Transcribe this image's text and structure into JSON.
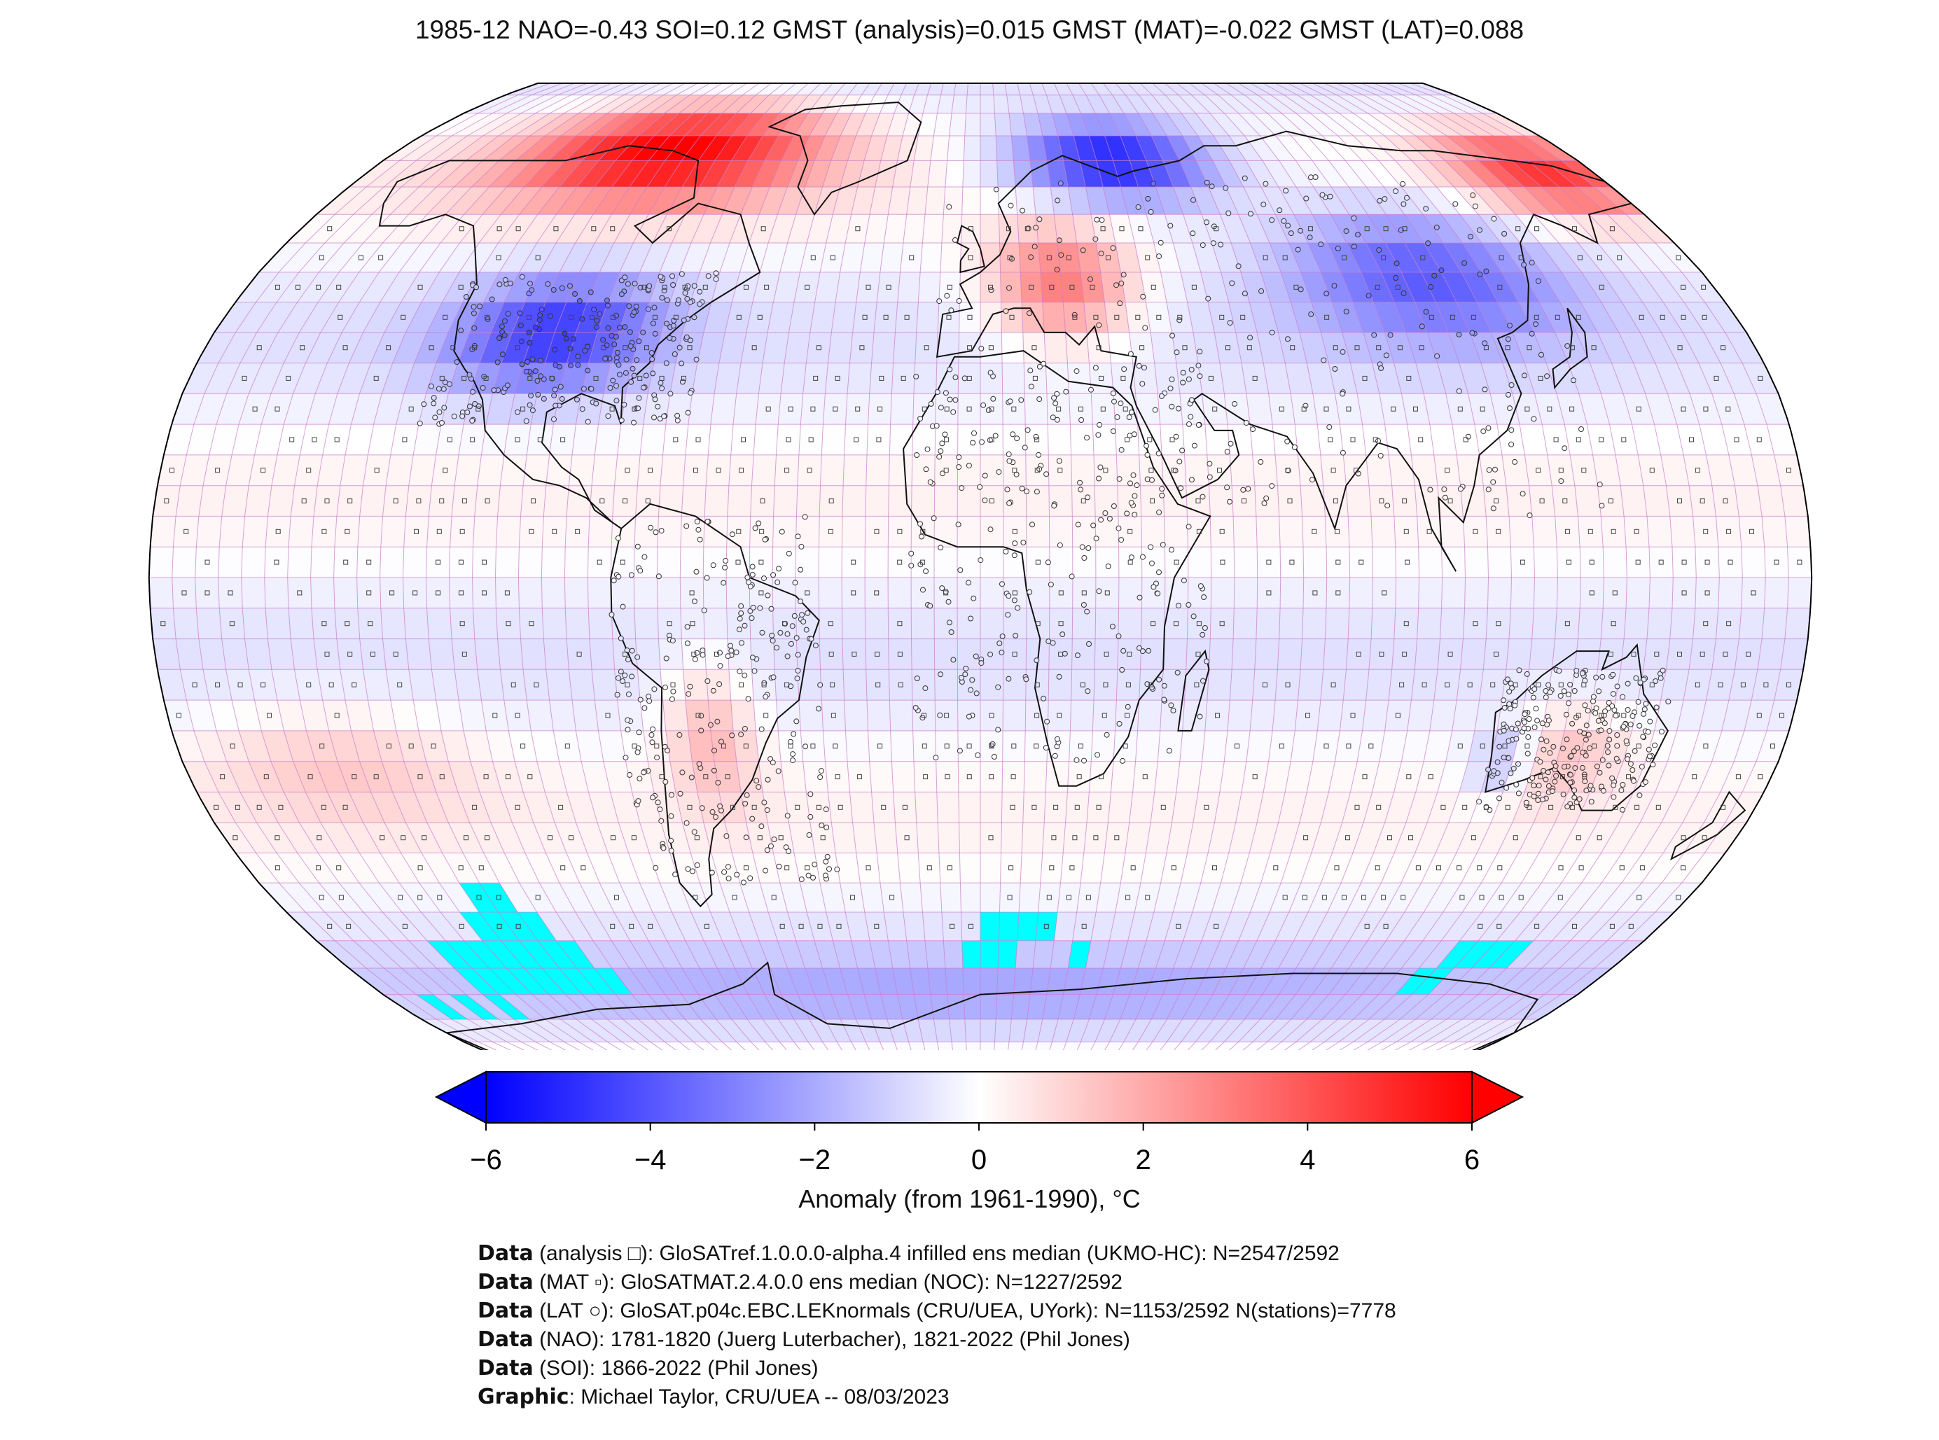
{
  "title": "1985-12 NAO=-0.43 SOI=0.12 GMST (analysis)=0.015 GMST (MAT)=-0.022 GMST (LAT)=0.088",
  "map": {
    "projection": "Robinson",
    "grid": "5-degree cells",
    "missing_color": "#00ffff",
    "regions": [
      {
        "name": "North America high latitudes",
        "anomaly": 5.5
      },
      {
        "name": "Central / eastern United States",
        "anomaly": -3.5
      },
      {
        "name": "Scandinavia / northern Russia",
        "anomaly": -4.5
      },
      {
        "name": "Central Europe",
        "anomaly": 3.0
      },
      {
        "name": "Siberia",
        "anomaly": -3.5
      },
      {
        "name": "Eastern Siberia / Alaska",
        "anomaly": 4.5
      },
      {
        "name": "Southern Ocean band",
        "anomaly": -1.5
      }
    ]
  },
  "colorbar": {
    "label": "Anomaly (from 1961-1990), °C",
    "min": -6,
    "max": 6,
    "extend": "both",
    "ticks": [
      "−6",
      "−4",
      "−2",
      "0",
      "2",
      "4",
      "6"
    ],
    "colors": [
      "#0000ff",
      "#ffffff",
      "#ff0000"
    ]
  },
  "credits": [
    {
      "bold": "Data",
      "text": " (analysis □): GloSATref.1.0.0.0-alpha.4 infilled ens median (UKMO-HC): N=2547/2592"
    },
    {
      "bold": "Data",
      "text": " (MAT ▫): GloSATMAT.2.4.0.0 ens median (NOC): N=1227/2592"
    },
    {
      "bold": "Data",
      "text": " (LAT ○): GloSAT.p04c.EBC.LEKnormals (CRU/UEA, UYork): N=1153/2592 N(stations)=7778"
    },
    {
      "bold": "Data",
      "text": " (NAO): 1781-1820 (Juerg Luterbacher), 1821-2022 (Phil Jones)"
    },
    {
      "bold": "Data",
      "text": " (SOI): 1866-2022 (Phil Jones)"
    },
    {
      "bold": "Graphic",
      "text": ": Michael Taylor, CRU/UEA -- 08/03/2023"
    }
  ]
}
